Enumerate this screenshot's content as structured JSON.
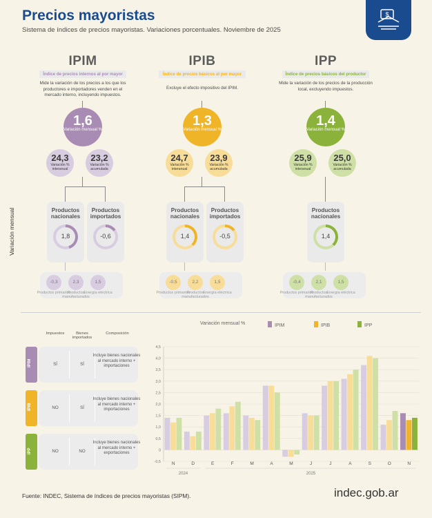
{
  "header": {
    "title": "Precios mayoristas",
    "subtitle": "Sistema de índices de precios mayoristas. Variaciones porcentuales. Noviembre de 2025"
  },
  "colors": {
    "ipim": "#a98cb4",
    "ipib": "#f0b429",
    "ipp": "#8bb23a",
    "ipim_soft": "#d8cde0",
    "ipib_soft": "#f7dd98",
    "ipp_soft": "#cfe0a6"
  },
  "indices": [
    {
      "key": "ipim",
      "code": "IPIM",
      "band": "Índice de precios internos al por mayor",
      "desc": "Mide la variación de los precios a los que los productores e importadores venden en el mercado interno, incluyendo impuestos.",
      "mensual": "1,6",
      "mensual_label": "Variación mensual %",
      "interanual": "24,3",
      "interanual_label": "Variación % interanual",
      "acumulada": "23,2",
      "acumulada_label": "Variación % acumulada",
      "cards": [
        {
          "title": "Productos nacionales",
          "value": "1,8",
          "fill": 0.45
        },
        {
          "title": "Productos importados",
          "value": "-0,6",
          "fill": 0.15
        }
      ],
      "sub": [
        {
          "value": "-0,3",
          "label": "Productos primarios"
        },
        {
          "value": "2,3",
          "label": "Productos manufacturados"
        },
        {
          "value": "1,5",
          "label": "Energía eléctrica"
        }
      ]
    },
    {
      "key": "ipib",
      "code": "IPIB",
      "band": "Índice de precios básicos al por mayor",
      "desc": "Excluye el efecto impositivo del IPIM.",
      "mensual": "1,3",
      "mensual_label": "Variación mensual %",
      "interanual": "24,7",
      "interanual_label": "Variación % interanual",
      "acumulada": "23,9",
      "acumulada_label": "Variación % acumulada",
      "cards": [
        {
          "title": "Productos nacionales",
          "value": "1,4",
          "fill": 0.38
        },
        {
          "title": "Productos importados",
          "value": "-0,5",
          "fill": 0.15
        }
      ],
      "sub": [
        {
          "value": "-0,5",
          "label": "Productos primarios"
        },
        {
          "value": "2,2",
          "label": "Productos manufacturados"
        },
        {
          "value": "1,5",
          "label": "Energía eléctrica"
        }
      ]
    },
    {
      "key": "ipp",
      "code": "IPP",
      "band": "Índice de precios básicos del productor",
      "desc": "Mide la variación de los precios de la producción local, excluyendo impuestos.",
      "mensual": "1,4",
      "mensual_label": "Variación mensual %",
      "interanual": "25,9",
      "interanual_label": "Variación % interanual",
      "acumulada": "25,0",
      "acumulada_label": "Variación % acumulada",
      "cards": [
        {
          "title": "Productos nacionales",
          "value": "1,4",
          "fill": 0.38
        }
      ],
      "sub": [
        {
          "value": "-0,4",
          "label": "Productos primarios"
        },
        {
          "value": "2,1",
          "label": "Productos manufacturados"
        },
        {
          "value": "1,5",
          "label": "Energía eléctrica"
        }
      ]
    }
  ],
  "side_label": "Variación mensual",
  "table": {
    "headers": [
      "Impuestos",
      "Bienes importados",
      "Composición"
    ],
    "rows": [
      {
        "tag": "IPIM",
        "impuestos": "SÍ",
        "importados": "SÍ",
        "composicion": "Incluye bienes nacionales al mercado interno + importaciones"
      },
      {
        "tag": "IPIB",
        "impuestos": "NO",
        "importados": "SÍ",
        "composicion": "Incluye bienes nacionales al mercado interno + importaciones"
      },
      {
        "tag": "IPP",
        "impuestos": "NO",
        "importados": "NO",
        "composicion": "Incluye bienes nacionales al mercado interno + exportaciones"
      }
    ]
  },
  "chart_data": {
    "type": "bar",
    "legend_title": "Variación mensual %",
    "categories": [
      "N",
      "D",
      "E",
      "F",
      "M",
      "A",
      "M",
      "J",
      "J",
      "A",
      "S",
      "O",
      "N"
    ],
    "year_labels": [
      {
        "label": "2024",
        "span": [
          0,
          1
        ]
      },
      {
        "label": "2025",
        "span": [
          2,
          12
        ]
      }
    ],
    "series": [
      {
        "name": "IPIM",
        "values": [
          1.4,
          0.8,
          1.5,
          1.6,
          1.5,
          2.8,
          -0.3,
          1.6,
          2.8,
          3.1,
          3.7,
          1.1,
          1.6
        ]
      },
      {
        "name": "IPIB",
        "values": [
          1.2,
          0.6,
          1.6,
          1.9,
          1.4,
          2.8,
          -0.3,
          1.5,
          3.0,
          3.3,
          4.1,
          1.3,
          1.3
        ]
      },
      {
        "name": "IPP",
        "values": [
          1.4,
          0.8,
          1.8,
          2.1,
          1.3,
          2.5,
          -0.2,
          1.5,
          3.0,
          3.5,
          4.0,
          1.7,
          1.4
        ]
      }
    ],
    "yticks": [
      "-0,5",
      "0",
      "0,5",
      "1,0",
      "1,5",
      "2,0",
      "2,5",
      "3,0",
      "3,5",
      "4,0",
      "4,5"
    ],
    "ylim": [
      -0.5,
      4.5
    ],
    "grid": true,
    "legend_position": "top"
  },
  "footer": {
    "source": "Fuente: INDEC, Sistema de índices de precios mayoristas (SIPM).",
    "brand": "indec.gob.ar"
  }
}
